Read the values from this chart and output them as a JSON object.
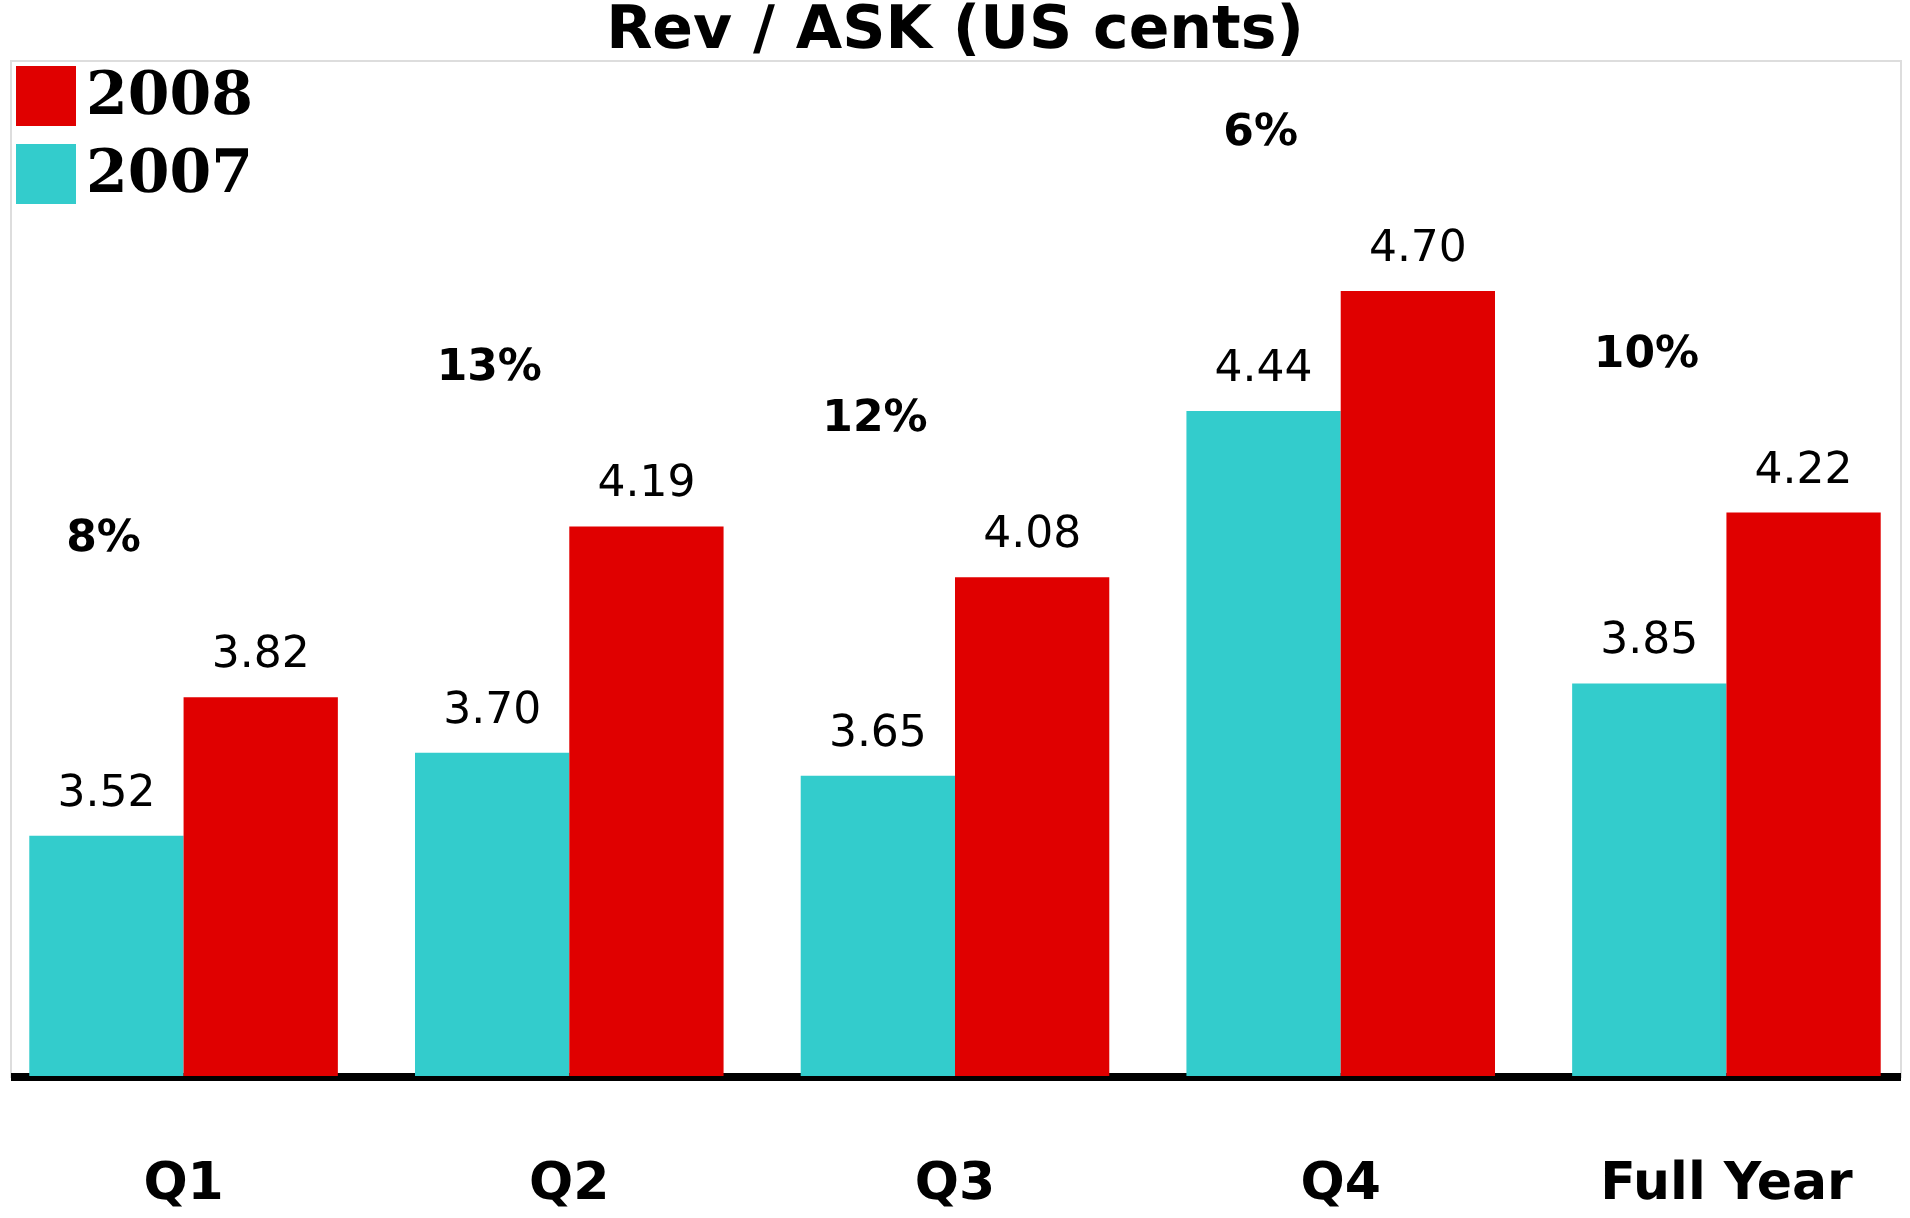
{
  "chart_data": {
    "type": "bar",
    "title": "Rev / ASK (US cents)",
    "categories": [
      "Q1",
      "Q2",
      "Q3",
      "Q4",
      "Full Year"
    ],
    "series": [
      {
        "name": "2007",
        "color": "#33cccc",
        "values": [
          3.52,
          3.7,
          3.65,
          4.44,
          3.85
        ],
        "value_labels": [
          "3.52",
          "3.70",
          "3.65",
          "4.44",
          "3.85"
        ]
      },
      {
        "name": "2008",
        "color": "#e00000",
        "values": [
          3.82,
          4.19,
          4.08,
          4.7,
          4.22
        ],
        "value_labels": [
          "3.82",
          "4.19",
          "4.08",
          "4.70",
          "4.22"
        ]
      }
    ],
    "ylim": [
      3.0,
      5.2
    ],
    "grid": false,
    "legend": "top left",
    "tick_labels": "x",
    "annotations": [
      "8%",
      "13%",
      "12%",
      "6%",
      "10%"
    ]
  }
}
